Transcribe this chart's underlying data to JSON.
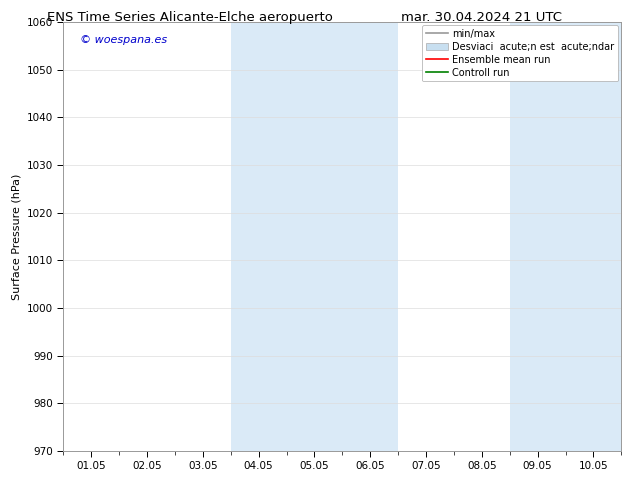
{
  "title_left": "ENS Time Series Alicante-Elche aeropuerto",
  "title_right": "mar. 30.04.2024 21 UTC",
  "ylabel": "Surface Pressure (hPa)",
  "ylim": [
    970,
    1060
  ],
  "yticks": [
    970,
    980,
    990,
    1000,
    1010,
    1020,
    1030,
    1040,
    1050,
    1060
  ],
  "xtick_labels": [
    "01.05",
    "02.05",
    "03.05",
    "04.05",
    "05.05",
    "06.05",
    "07.05",
    "08.05",
    "09.05",
    "10.05"
  ],
  "xtick_positions": [
    0,
    1,
    2,
    3,
    4,
    5,
    6,
    7,
    8,
    9
  ],
  "shaded_regions": [
    {
      "xstart": 3,
      "xend": 5,
      "color": "#daeaf7"
    },
    {
      "xstart": 8,
      "xend": 9,
      "color": "#daeaf7"
    }
  ],
  "watermark_text": "© woespana.es",
  "watermark_color": "#0000cc",
  "legend_label_minmax": "min/max",
  "legend_label_std": "Desviaci  acute;n est  acute;ndar",
  "legend_label_ensemble": "Ensemble mean run",
  "legend_label_control": "Controll run",
  "legend_color_minmax": "#999999",
  "legend_color_std": "#c8dff0",
  "legend_color_ensemble": "red",
  "legend_color_control": "green",
  "bg_color": "#ffffff",
  "grid_color": "#dddddd",
  "spine_color": "#999999",
  "title_fontsize": 9.5,
  "ylabel_fontsize": 8,
  "tick_fontsize": 7.5,
  "legend_fontsize": 7,
  "watermark_fontsize": 8
}
